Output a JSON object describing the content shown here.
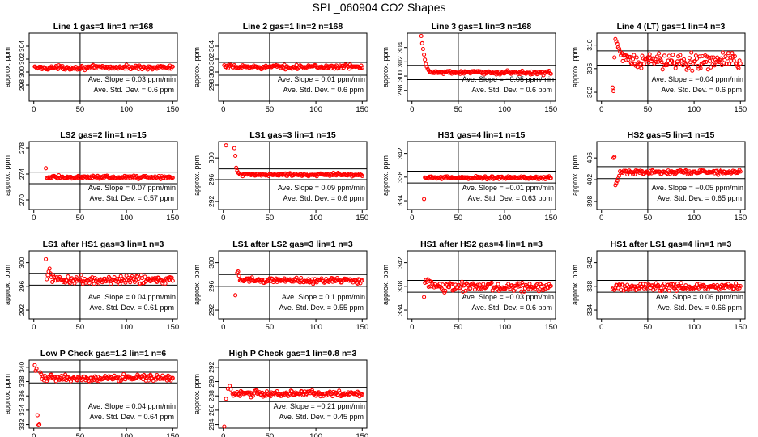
{
  "title": "SPL_060904  CO2 Shapes",
  "colors": {
    "points": "#ff0000",
    "axes": "#000000",
    "background": "#ffffff"
  },
  "chart_data": [
    {
      "type": "scatter",
      "title": "Line 1 gas=1 lin=1 n=168",
      "ylabel": "approx. ppm",
      "ylim": [
        295.5,
        306
      ],
      "yticks": [
        298,
        300,
        302,
        304
      ],
      "xlim": [
        -5,
        155
      ],
      "xticks": [
        0,
        50,
        100,
        150
      ],
      "hlines": [
        299.5,
        301.5
      ],
      "vline": 50,
      "slope_text": "Ave. Slope =  0.03  ppm/min",
      "sd_text": "Ave. Std. Dev. =  0.6  ppm",
      "pattern": {
        "x_start": 1,
        "base": 300.7,
        "noise": 0.15,
        "drift": 0.03,
        "spikes": [],
        "outliers": [],
        "decay": null
      }
    },
    {
      "type": "scatter",
      "title": "Line 2 gas=1 lin=2 n=168",
      "ylabel": "approx. ppm",
      "ylim": [
        295.5,
        306
      ],
      "yticks": [
        298,
        300,
        302,
        304
      ],
      "xlim": [
        -5,
        155
      ],
      "xticks": [
        0,
        50,
        100,
        150
      ],
      "hlines": [
        299.5,
        301.5
      ],
      "vline": 50,
      "slope_text": "Ave. Slope =  0.01  ppm/min",
      "sd_text": "Ave. Std. Dev. =  0.6  ppm",
      "pattern": {
        "x_start": 1,
        "base": 300.8,
        "noise": 0.15,
        "drift": 0.01,
        "spikes": [],
        "outliers": [],
        "decay": null
      }
    },
    {
      "type": "scatter",
      "title": "Line 3 gas=1 lin=3 n=168",
      "ylabel": "approx. ppm",
      "ylim": [
        296.5,
        306
      ],
      "yticks": [
        298,
        300,
        302,
        304
      ],
      "xlim": [
        -5,
        155
      ],
      "xticks": [
        0,
        50,
        100,
        150
      ],
      "hlines": [
        299.5,
        301.5
      ],
      "vline": 50,
      "slope_text": "Ave. Slope = −0.05  ppm/min",
      "sd_text": "Ave. Std. Dev. =  0.6  ppm",
      "pattern": {
        "x_start": 10,
        "base": 300.5,
        "noise": 0.12,
        "drift": -0.03,
        "spikes": [],
        "outliers": [],
        "decay": {
          "points": [
            [
              10,
              305.6
            ],
            [
              11,
              304.6
            ],
            [
              12,
              303.8
            ],
            [
              13,
              303.0
            ],
            [
              14,
              302.3
            ],
            [
              15,
              301.7
            ],
            [
              16,
              301.3
            ],
            [
              17,
              301.0
            ],
            [
              18,
              300.8
            ]
          ]
        }
      }
    },
    {
      "type": "scatter",
      "title": "Line 4 (LT) gas=1 lin=4 n=3",
      "ylabel": "approx. ppm",
      "ylim": [
        300.5,
        312
      ],
      "yticks": [
        302,
        306,
        310
      ],
      "xlim": [
        -5,
        155
      ],
      "xticks": [
        0,
        50,
        100,
        150
      ],
      "hlines": [
        306.6,
        309.0
      ],
      "vline": 50,
      "slope_text": "Ave. Slope = −0.04  ppm/min",
      "sd_text": "Ave. Std. Dev. =  0.6  ppm",
      "pattern": {
        "x_start": 14,
        "base": 307.3,
        "noise": 0.7,
        "drift": -0.04,
        "spikes": [],
        "outliers": [
          [
            12,
            302.8
          ],
          [
            13,
            302.2
          ]
        ],
        "decay": {
          "points": [
            [
              15,
              311.0
            ],
            [
              16,
              310.6
            ],
            [
              17,
              310.2
            ],
            [
              18,
              309.6
            ],
            [
              19,
              309.4
            ],
            [
              20,
              308.9
            ],
            [
              22,
              308.6
            ],
            [
              24,
              308.2
            ]
          ]
        }
      }
    },
    {
      "type": "scatter",
      "title": "LS2 gas=2 lin=1 n=15",
      "ylabel": "approx. ppm",
      "ylim": [
        268.5,
        279
      ],
      "yticks": [
        270,
        274,
        278
      ],
      "xlim": [
        -5,
        155
      ],
      "xticks": [
        0,
        50,
        100,
        150
      ],
      "hlines": [
        272.5,
        274.3
      ],
      "vline": 50,
      "slope_text": "Ave. Slope =  0.07  ppm/min",
      "sd_text": "Ave. Std. Dev. =  0.57  ppm",
      "pattern": {
        "x_start": 14,
        "base": 273.5,
        "noise": 0.12,
        "drift": 0.0,
        "spikes": [],
        "outliers": [
          [
            13,
            274.9
          ]
        ],
        "decay": null
      }
    },
    {
      "type": "scatter",
      "title": "LS1 gas=3 lin=1 n=15",
      "ylabel": "approx. ppm",
      "ylim": [
        290.5,
        303
      ],
      "yticks": [
        292,
        296,
        300
      ],
      "xlim": [
        -5,
        155
      ],
      "xticks": [
        0,
        50,
        100,
        150
      ],
      "hlines": [
        296.0,
        298.0
      ],
      "vline": 50,
      "slope_text": "Ave. Slope =  0.09  ppm/min",
      "sd_text": "Ave. Std. Dev. =  0.6  ppm",
      "pattern": {
        "x_start": 14,
        "base": 296.9,
        "noise": 0.15,
        "drift": 0.0,
        "spikes": [],
        "outliers": [
          [
            3,
            302.3
          ],
          [
            12,
            301.8
          ],
          [
            13,
            300.4
          ]
        ],
        "decay": {
          "points": [
            [
              14,
              298.2
            ],
            [
              15,
              297.6
            ],
            [
              16,
              297.3
            ]
          ]
        }
      }
    },
    {
      "type": "scatter",
      "title": "HS1 gas=4 lin=1 n=15",
      "ylabel": "approx. ppm",
      "ylim": [
        332.5,
        344
      ],
      "yticks": [
        334,
        338,
        342
      ],
      "xlim": [
        -5,
        155
      ],
      "xticks": [
        0,
        50,
        100,
        150
      ],
      "hlines": [
        337.0,
        339.0
      ],
      "vline": 50,
      "slope_text": "Ave. Slope = −0.01  ppm/min",
      "sd_text": "Ave. Std. Dev. =  0.63  ppm",
      "pattern": {
        "x_start": 14,
        "base": 337.9,
        "noise": 0.12,
        "drift": 0.0,
        "spikes": [],
        "outliers": [
          [
            13,
            334.3
          ]
        ],
        "decay": null
      }
    },
    {
      "type": "scatter",
      "title": "HS2 gas=5 lin=1 n=15",
      "ylabel": "approx. ppm",
      "ylim": [
        396.5,
        409
      ],
      "yticks": [
        398,
        402,
        406
      ],
      "xlim": [
        -5,
        155
      ],
      "xticks": [
        0,
        50,
        100,
        150
      ],
      "hlines": [
        402.2,
        404.4
      ],
      "vline": 50,
      "slope_text": "Ave. Slope = −0.05  ppm/min",
      "sd_text": "Ave. Std. Dev. =  0.65  ppm",
      "pattern": {
        "x_start": 20,
        "base": 403.4,
        "noise": 0.2,
        "drift": 0.0,
        "spikes": [],
        "outliers": [
          [
            13,
            406.0
          ],
          [
            14,
            406.2
          ]
        ],
        "decay": {
          "points": [
            [
              15,
              401.0
            ],
            [
              16,
              401.4
            ],
            [
              17,
              401.8
            ],
            [
              18,
              402.2
            ],
            [
              19,
              402.7
            ]
          ]
        }
      }
    },
    {
      "type": "scatter",
      "title": "LS1 after HS1 gas=3 lin=1 n=3",
      "ylabel": "approx. ppm",
      "ylim": [
        290.5,
        302
      ],
      "yticks": [
        292,
        296,
        300
      ],
      "xlim": [
        -5,
        155
      ],
      "xticks": [
        0,
        50,
        100,
        150
      ],
      "hlines": [
        296.2,
        298.2
      ],
      "vline": 50,
      "slope_text": "Ave. Slope =  0.04  ppm/min",
      "sd_text": "Ave. Std. Dev. =  0.61  ppm",
      "pattern": {
        "x_start": 19,
        "base": 297.1,
        "noise": 0.35,
        "drift": 0.0,
        "spikes": [],
        "outliers": [
          [
            13,
            300.6
          ],
          [
            14,
            297.2
          ]
        ],
        "decay": {
          "points": [
            [
              15,
              297.9
            ],
            [
              16,
              298.5
            ],
            [
              17,
              299.0
            ],
            [
              18,
              298.2
            ]
          ]
        }
      }
    },
    {
      "type": "scatter",
      "title": "LS1 after LS2 gas=3 lin=1 n=3",
      "ylabel": "approx. ppm",
      "ylim": [
        290.5,
        302
      ],
      "yticks": [
        292,
        296,
        300
      ],
      "xlim": [
        -5,
        155
      ],
      "xticks": [
        0,
        50,
        100,
        150
      ],
      "hlines": [
        296.0,
        298.0
      ],
      "vline": 50,
      "slope_text": "Ave. Slope =  0.1  ppm/min",
      "sd_text": "Ave. Std. Dev. =  0.55  ppm",
      "pattern": {
        "x_start": 19,
        "base": 297.0,
        "noise": 0.25,
        "drift": 0.0,
        "spikes": [],
        "outliers": [
          [
            13,
            294.5
          ],
          [
            15,
            298.3
          ],
          [
            16,
            298.5
          ]
        ],
        "decay": {
          "points": [
            [
              17,
              297.8
            ],
            [
              18,
              297.0
            ]
          ]
        }
      }
    },
    {
      "type": "scatter",
      "title": "HS1 after HS2 gas=4 lin=1 n=3",
      "ylabel": "approx. ppm",
      "ylim": [
        332.5,
        344
      ],
      "yticks": [
        334,
        338,
        342
      ],
      "xlim": [
        -5,
        155
      ],
      "xticks": [
        0,
        50,
        100,
        150
      ],
      "hlines": [
        337.0,
        339.0
      ],
      "vline": 50,
      "slope_text": "Ave. Slope = −0.03  ppm/min",
      "sd_text": "Ave. Std. Dev. =  0.6  ppm",
      "pattern": {
        "x_start": 14,
        "base": 337.9,
        "noise": 0.35,
        "drift": 0.0,
        "spikes": [],
        "outliers": [
          [
            13,
            336.2
          ]
        ],
        "decay": {
          "points": [
            [
              14,
              338.6
            ],
            [
              15,
              339.1
            ],
            [
              17,
              339.2
            ],
            [
              19,
              338.9
            ],
            [
              21,
              338.8
            ]
          ]
        }
      }
    },
    {
      "type": "scatter",
      "title": "HS1 after LS1 gas=4 lin=1 n=3",
      "ylabel": "approx. ppm",
      "ylim": [
        332.5,
        344
      ],
      "yticks": [
        334,
        338,
        342
      ],
      "xlim": [
        -5,
        155
      ],
      "xticks": [
        0,
        50,
        100,
        150
      ],
      "hlines": [
        337.0,
        339.0
      ],
      "vline": 50,
      "slope_text": "Ave. Slope =  0.06  ppm/min",
      "sd_text": "Ave. Std. Dev. =  0.66  ppm",
      "pattern": {
        "x_start": 12,
        "base": 337.9,
        "noise": 0.3,
        "drift": 0.0,
        "spikes": [],
        "outliers": [],
        "decay": null
      }
    },
    {
      "type": "scatter",
      "title": "Low P Check gas=1.2 lin=1 n=6",
      "ylabel": "approx. ppm",
      "ylim": [
        331.5,
        341
      ],
      "yticks": [
        332,
        334,
        336,
        338,
        340
      ],
      "xlim": [
        -5,
        155
      ],
      "xticks": [
        0,
        50,
        100,
        150
      ],
      "hlines": [
        337.8,
        339.3
      ],
      "vline": 50,
      "slope_text": "Ave. Slope =  0.04  ppm/min",
      "sd_text": "Ave. Std. Dev. =  0.64  ppm",
      "pattern": {
        "x_start": 8,
        "base": 338.5,
        "noise": 0.2,
        "drift": 0.0,
        "spikes": [],
        "outliers": [
          [
            1,
            340.3
          ],
          [
            2,
            339.5
          ],
          [
            3,
            339.8
          ],
          [
            4,
            333.3
          ],
          [
            5,
            331.9
          ],
          [
            6,
            332.0
          ]
        ],
        "decay": {
          "points": [
            [
              7,
              339.3
            ],
            [
              8,
              339.0
            ]
          ]
        }
      }
    },
    {
      "type": "scatter",
      "title": "High P Check gas=1 lin=0.8 n=3",
      "ylabel": "approx. ppm",
      "ylim": [
        283.5,
        293
      ],
      "yticks": [
        284,
        286,
        288,
        290,
        292
      ],
      "xlim": [
        -5,
        155
      ],
      "xticks": [
        0,
        50,
        100,
        150
      ],
      "hlines": [
        287.2,
        289.2
      ],
      "vline": 50,
      "slope_text": "Ave. Slope = −0.21  ppm/min",
      "sd_text": "Ave. Std. Dev. =  0.45  ppm",
      "pattern": {
        "x_start": 10,
        "base": 288.3,
        "noise": 0.2,
        "drift": -0.01,
        "spikes": [],
        "outliers": [
          [
            1,
            283.7
          ],
          [
            3,
            287.6
          ],
          [
            5,
            289.0
          ],
          [
            7,
            289.4
          ],
          [
            8,
            288.9
          ]
        ],
        "decay": null
      }
    }
  ]
}
